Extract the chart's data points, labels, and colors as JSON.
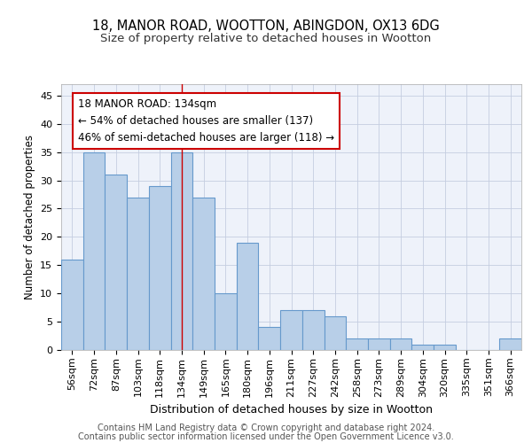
{
  "title1": "18, MANOR ROAD, WOOTTON, ABINGDON, OX13 6DG",
  "title2": "Size of property relative to detached houses in Wootton",
  "xlabel": "Distribution of detached houses by size in Wootton",
  "ylabel": "Number of detached properties",
  "categories": [
    "56sqm",
    "72sqm",
    "87sqm",
    "103sqm",
    "118sqm",
    "134sqm",
    "149sqm",
    "165sqm",
    "180sqm",
    "196sqm",
    "211sqm",
    "227sqm",
    "242sqm",
    "258sqm",
    "273sqm",
    "289sqm",
    "304sqm",
    "320sqm",
    "335sqm",
    "351sqm",
    "366sqm"
  ],
  "values": [
    16,
    35,
    31,
    27,
    29,
    35,
    27,
    10,
    19,
    4,
    7,
    7,
    6,
    2,
    2,
    2,
    1,
    1,
    0,
    0,
    2
  ],
  "bar_color": "#b8cfe8",
  "bar_edge_color": "#6699cc",
  "highlight_index": 5,
  "highlight_line_color": "#cc0000",
  "annotation_line1": "18 MANOR ROAD: 134sqm",
  "annotation_line2": "← 54% of detached houses are smaller (137)",
  "annotation_line3": "46% of semi-detached houses are larger (118) →",
  "annotation_box_color": "white",
  "annotation_box_edge_color": "#cc0000",
  "ylim": [
    0,
    47
  ],
  "yticks": [
    0,
    5,
    10,
    15,
    20,
    25,
    30,
    35,
    40,
    45
  ],
  "footer_line1": "Contains HM Land Registry data © Crown copyright and database right 2024.",
  "footer_line2": "Contains public sector information licensed under the Open Government Licence v3.0.",
  "bg_color": "#eef2fa",
  "grid_color": "#c5cde0",
  "title1_fontsize": 10.5,
  "title2_fontsize": 9.5,
  "xlabel_fontsize": 9,
  "ylabel_fontsize": 8.5,
  "tick_fontsize": 8,
  "annotation_fontsize": 8.5,
  "footer_fontsize": 7
}
